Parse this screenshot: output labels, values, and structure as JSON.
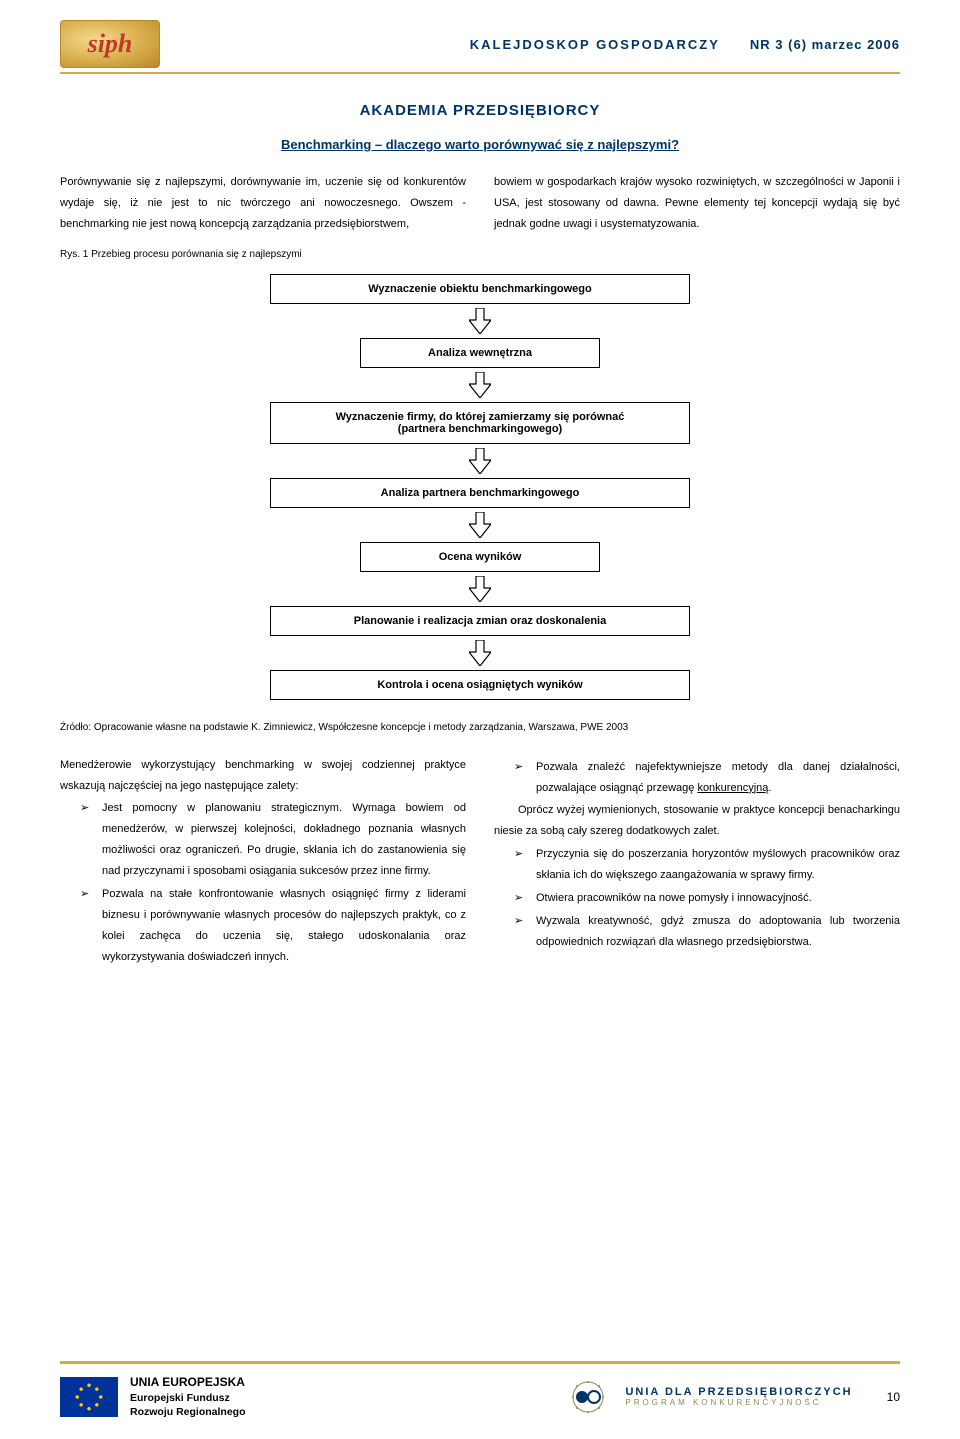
{
  "header": {
    "magazine_title": "KALEJDOSKOP GOSPODARCZY",
    "issue": "NR 3 (6) marzec 2006",
    "title_color": "#003366",
    "rule_color": "#d4a947"
  },
  "section": {
    "title": "AKADEMIA PRZEDSIĘBIORCY",
    "subtitle": "Benchmarking – dlaczego warto porównywać się z najlepszymi?",
    "color": "#003366"
  },
  "intro": {
    "left": "Porównywanie się z najlepszymi, dorównywanie im, uczenie się od konkurentów wydaje się, iż nie jest to nic twórczego ani nowoczesnego. Owszem - benchmarking nie jest nową koncepcją zarządzania przedsiębiorstwem,",
    "right": "bowiem w gospodarkach krajów wysoko rozwiniętych, w szczególności w Japonii i USA, jest stosowany od dawna. Pewne elementy tej koncepcji wydają się być jednak godne uwagi i usystematyzowania."
  },
  "figure": {
    "caption": "Rys. 1 Przebieg procesu porównania się z najlepszymi",
    "type": "flowchart",
    "arrow_fill": "#ffffff",
    "arrow_stroke": "#000000",
    "box_border": "#000000",
    "nodes": [
      {
        "id": "n1",
        "label": "Wyznaczenie obiektu benchmarkingowego",
        "wide": true
      },
      {
        "id": "n2",
        "label": "Analiza wewnętrzna",
        "wide": false
      },
      {
        "id": "n3",
        "label": "Wyznaczenie firmy, do której zamierzamy się porównać",
        "sublabel": "(partnera benchmarkingowego)",
        "wide": true
      },
      {
        "id": "n4",
        "label": "Analiza partnera benchmarkingowego",
        "wide": true
      },
      {
        "id": "n5",
        "label": "Ocena wyników",
        "wide": false
      },
      {
        "id": "n6",
        "label": "Planowanie i realizacja zmian oraz doskonalenia",
        "wide": true
      },
      {
        "id": "n7",
        "label": "Kontrola i ocena osiągniętych wyników",
        "wide": true
      }
    ],
    "source": "Źródło: Opracowanie własne na podstawie K. Zimniewicz, Współczesne koncepcje i metody zarządzania, Warszawa, PWE 2003"
  },
  "lower": {
    "left_intro": "Menedżerowie wykorzystujący benchmarking w swojej codziennej praktyce wskazują najczęściej na jego następujące zalety:",
    "left_bullets": [
      "Jest pomocny w planowaniu strategicznym. Wymaga bowiem od menedżerów, w pierwszej kolejności, dokładnego poznania własnych możliwości oraz ograniczeń. Po drugie, skłania ich do zastanowienia się nad przyczynami i sposobami osiągania sukcesów przez inne firmy.",
      "Pozwala na stałe konfrontowanie własnych osiągnięć firmy z liderami biznesu i porównywanie własnych procesów do najlepszych praktyk, co z kolei zachęca do uczenia się, stałego udoskonalania oraz wykorzystywania doświadczeń innych."
    ],
    "right_top_bullet": {
      "pre": "Pozwala znaleźć najefektywniejsze metody dla danej działalności, pozwalające osiągnąć przewagę ",
      "underlined": "konkurencyjną",
      "post": "."
    },
    "right_para": "Oprócz wyżej wymienionych, stosowanie w praktyce koncepcji benacharkingu niesie za sobą cały szereg dodatkowych zalet.",
    "right_bullets": [
      "Przyczynia się do poszerzania horyzontów myślowych pracowników oraz skłania ich do większego zaangażowania w sprawy firmy.",
      "Otwiera pracowników na nowe pomysły i innowacyjność.",
      "Wyzwala kreatywność, gdyż zmusza do adoptowania lub tworzenia odpowiednich rozwiązań dla własnego przedsiębiorstwa."
    ],
    "bullet_marker": "➢"
  },
  "footer": {
    "eu": {
      "line1": "UNIA EUROPEJSKA",
      "line2": "Europejski Fundusz",
      "line3": "Rozwoju Regionalnego",
      "flag_bg": "#003399",
      "star_color": "#ffcc00"
    },
    "udp": {
      "line1": "UNIA DLA PRZEDSIĘBIORCZYCH",
      "line2": "PROGRAM KONKURENCYJNOŚĆ",
      "text_color": "#003366"
    },
    "page_number": "10"
  }
}
